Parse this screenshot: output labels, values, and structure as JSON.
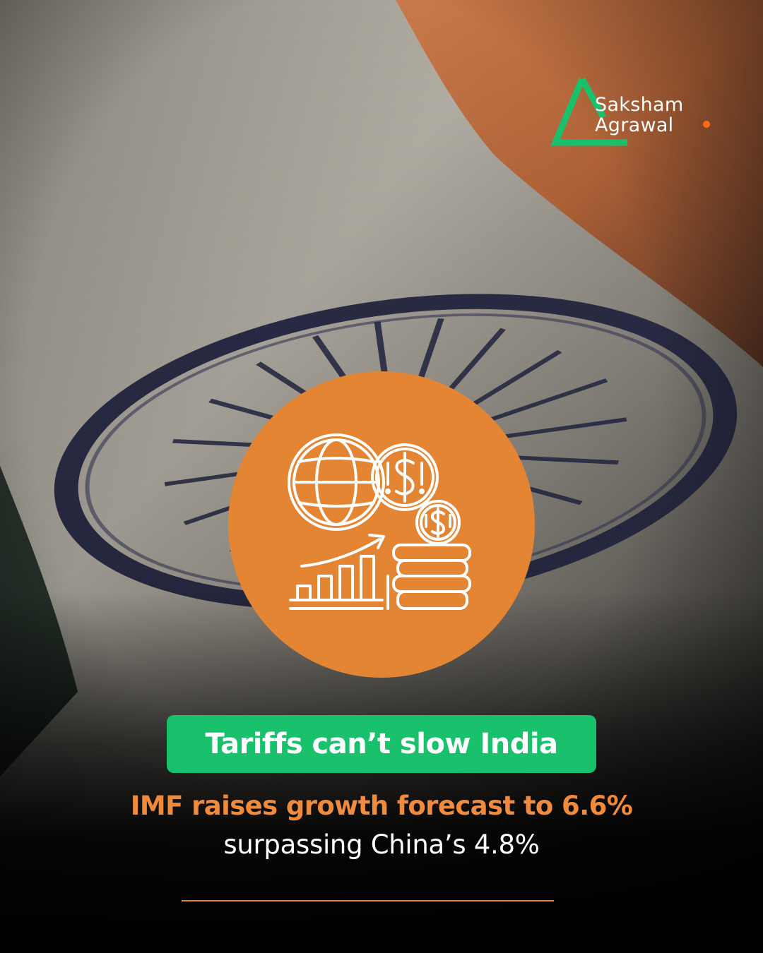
{
  "brand": {
    "name_line1": "Saksham",
    "name_line2": "Agrawal",
    "mark_color": "#19c16c",
    "dot_color": "#ff6a1a"
  },
  "badge": {
    "color": "#e48534",
    "icons": [
      "globe-icon",
      "dollar-coin-icon",
      "bar-chart-growth-icon",
      "coin-stack-icon"
    ]
  },
  "headline": {
    "label": "Tariffs can’t slow India",
    "color": "#19c16c"
  },
  "subtitle": {
    "line1": "IMF raises growth forecast to 6.6%",
    "line2": "surpassing China’s 4.8%",
    "accent_color": "#f08a3c"
  }
}
